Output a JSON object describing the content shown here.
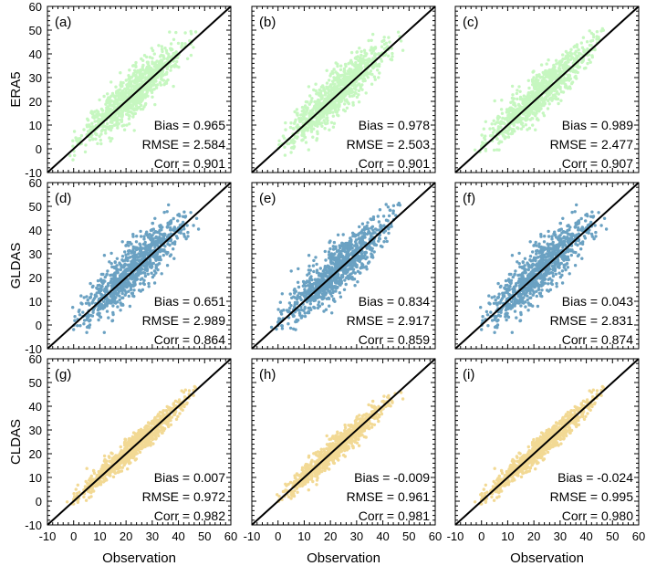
{
  "chart_data": {
    "type": "scatter",
    "xlabel": "Observation",
    "xlim": [
      -10,
      60
    ],
    "ylim": [
      -10,
      60
    ],
    "ticks": [
      "-10",
      "0",
      "10",
      "20",
      "30",
      "40",
      "50",
      "60"
    ],
    "rows": [
      {
        "label": "ERA5",
        "color": "#c6f7c0"
      },
      {
        "label": "GLDAS",
        "color": "#6aa1c2"
      },
      {
        "label": "CLDAS",
        "color": "#f2d994"
      }
    ],
    "panels": [
      {
        "tag": "(a)",
        "bias": "Bias  = 0.965",
        "rmse": "RMSE = 2.584",
        "corr": "Corr  = 0.901"
      },
      {
        "tag": "(b)",
        "bias": "Bias  = 0.978",
        "rmse": "RMSE = 2.503",
        "corr": "Corr  = 0.901"
      },
      {
        "tag": "(c)",
        "bias": "Bias  = 0.989",
        "rmse": "RMSE = 2.477",
        "corr": "Corr  = 0.907"
      },
      {
        "tag": "(d)",
        "bias": "Bias  = 0.651",
        "rmse": "RMSE = 2.989",
        "corr": "Corr  = 0.864"
      },
      {
        "tag": "(e)",
        "bias": "Bias  = 0.834",
        "rmse": "RMSE = 2.917",
        "corr": "Corr  = 0.859"
      },
      {
        "tag": "(f)",
        "bias": "Bias  = 0.043",
        "rmse": "RMSE = 2.831",
        "corr": "Corr  = 0.874"
      },
      {
        "tag": "(g)",
        "bias": "Bias  = 0.007",
        "rmse": "RMSE = 0.972",
        "corr": "Corr  = 0.982"
      },
      {
        "tag": "(h)",
        "bias": "Bias  = -0.009",
        "rmse": "RMSE = 0.961",
        "corr": "Corr  = 0.981"
      },
      {
        "tag": "(i)",
        "bias": "Bias  = -0.024",
        "rmse": "RMSE = 0.995",
        "corr": "Corr  = 0.980"
      }
    ],
    "reference_line": "1:1"
  }
}
